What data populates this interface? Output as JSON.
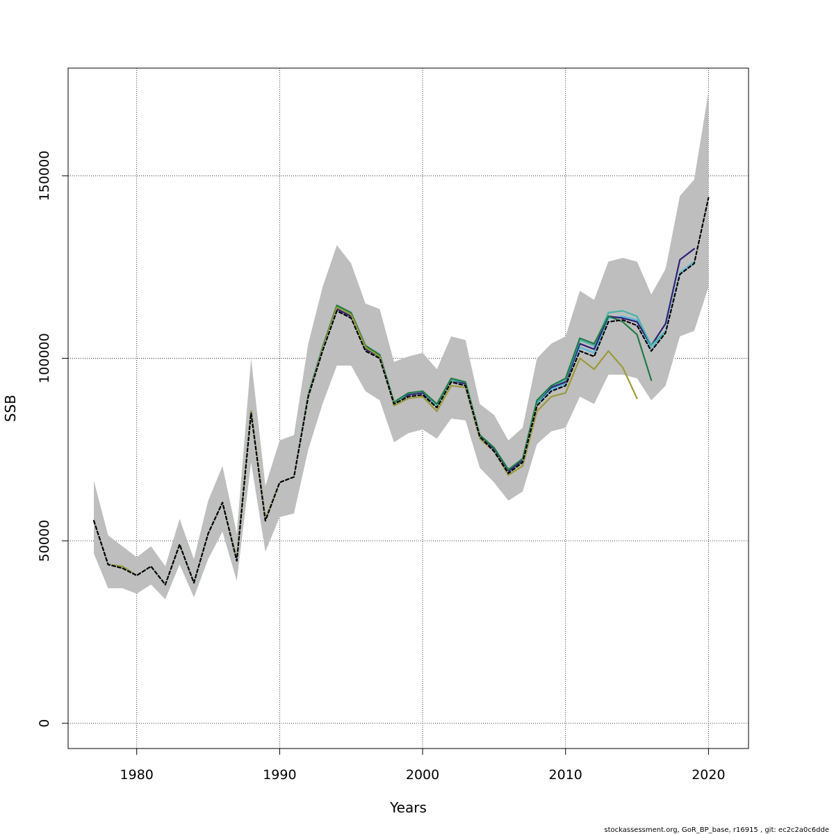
{
  "chart_data": {
    "type": "line",
    "xlabel": "Years",
    "ylabel": "SSB",
    "xlim": [
      1975.2,
      2022.8
    ],
    "ylim": [
      -6900,
      179500
    ],
    "x_ticks": [
      1980,
      1990,
      2000,
      2010,
      2020
    ],
    "y_ticks": [
      0,
      50000,
      100000,
      150000
    ],
    "x_tick_labels": [
      "1980",
      "1990",
      "2000",
      "2010",
      "2020"
    ],
    "y_tick_labels": [
      "0",
      "50000",
      "100000",
      "150000"
    ],
    "grid": true,
    "footer": "stockassessment.org, GoR_BP_base, r16915 , git: ec2c2a0c6dde",
    "band": {
      "color": "#bebebe",
      "x": [
        1977,
        1978,
        1979,
        1980,
        1981,
        1982,
        1983,
        1984,
        1985,
        1986,
        1987,
        1988,
        1989,
        1990,
        1991,
        1992,
        1993,
        1994,
        1995,
        1996,
        1997,
        1998,
        1999,
        2000,
        2001,
        2002,
        2003,
        2004,
        2005,
        2006,
        2007,
        2008,
        2009,
        2010,
        2011,
        2012,
        2013,
        2014,
        2015,
        2016,
        2017,
        2018,
        2019,
        2020
      ],
      "upper": [
        66500,
        51500,
        48500,
        45500,
        48500,
        43000,
        56000,
        45000,
        61000,
        70500,
        52000,
        100000,
        65000,
        77500,
        79000,
        104000,
        119500,
        131000,
        126000,
        115000,
        113500,
        99000,
        100500,
        101500,
        97000,
        106000,
        105000,
        87500,
        84500,
        77500,
        81000,
        100000,
        104000,
        106000,
        118500,
        116000,
        126500,
        127500,
        126500,
        117500,
        124500,
        144500,
        149000,
        173000
      ],
      "lower": [
        46500,
        37000,
        37000,
        35500,
        38000,
        34000,
        43500,
        34500,
        45000,
        52500,
        39000,
        71500,
        47000,
        56500,
        57500,
        75000,
        87500,
        98000,
        98000,
        91000,
        88500,
        77000,
        79500,
        80500,
        78000,
        83500,
        83000,
        70000,
        66000,
        61000,
        63500,
        76500,
        80000,
        81000,
        89500,
        87500,
        95500,
        95500,
        94500,
        88500,
        92500,
        106000,
        107500,
        119500
      ]
    },
    "series": [
      {
        "style": "black-dashed",
        "color": "#000000",
        "x": [
          1977,
          1978,
          1979,
          1980,
          1981,
          1982,
          1983,
          1984,
          1985,
          1986,
          1987,
          1988,
          1989,
          1990,
          1991,
          1992,
          1993,
          1994,
          1995,
          1996,
          1997,
          1998,
          1999,
          2000,
          2001,
          2002,
          2003,
          2004,
          2005,
          2006,
          2007,
          2008,
          2009,
          2010,
          2011,
          2012,
          2013,
          2014,
          2015,
          2016,
          2017,
          2018,
          2019,
          2020
        ],
        "values": [
          55500,
          43500,
          42500,
          40500,
          43000,
          38000,
          49000,
          38500,
          52000,
          60500,
          44500,
          85000,
          55500,
          66000,
          67500,
          89500,
          102000,
          113000,
          111000,
          102000,
          100000,
          87500,
          89500,
          90000,
          86500,
          93500,
          92500,
          78500,
          74500,
          68500,
          71500,
          87000,
          91000,
          92500,
          102000,
          100500,
          110000,
          110500,
          109000,
          102000,
          107000,
          123000,
          126000,
          144000
        ]
      },
      {
        "style": "solid",
        "color": "#5cb8d8",
        "x": [
          1977,
          1978,
          1979,
          1980,
          1981,
          1982,
          1983,
          1984,
          1985,
          1986,
          1987,
          1988,
          1989,
          1990,
          1991,
          1992,
          1993,
          1994,
          1995,
          1996,
          1997,
          1998,
          1999,
          2000,
          2001,
          2002,
          2003,
          2004,
          2005,
          2006,
          2007,
          2008,
          2009,
          2010,
          2011,
          2012,
          2013,
          2014,
          2015,
          2016,
          2017,
          2018,
          2019
        ],
        "values": [
          55500,
          43500,
          42500,
          40500,
          43000,
          38000,
          49000,
          38500,
          52000,
          60500,
          44500,
          85000,
          55500,
          66000,
          67500,
          89500,
          102500,
          113000,
          111000,
          102500,
          100500,
          87500,
          89500,
          90000,
          86500,
          93500,
          92500,
          78500,
          74500,
          69000,
          72000,
          87500,
          91500,
          93000,
          103000,
          101500,
          111000,
          111500,
          110500,
          102500,
          107500,
          123500,
          126500
        ]
      },
      {
        "style": "solid",
        "color": "#2e1f7a",
        "x": [
          1977,
          1978,
          1979,
          1980,
          1981,
          1982,
          1983,
          1984,
          1985,
          1986,
          1987,
          1988,
          1989,
          1990,
          1991,
          1992,
          1993,
          1994,
          1995,
          1996,
          1997,
          1998,
          1999,
          2000,
          2001,
          2002,
          2003,
          2004,
          2005,
          2006,
          2007,
          2008,
          2009,
          2010,
          2011,
          2012,
          2013,
          2014,
          2015,
          2016,
          2017,
          2018,
          2019
        ],
        "values": [
          55500,
          43500,
          42500,
          40500,
          43000,
          38000,
          49000,
          38500,
          52000,
          60500,
          44500,
          85500,
          55500,
          66000,
          67500,
          89500,
          102500,
          113500,
          111500,
          102500,
          100500,
          87500,
          90000,
          90500,
          87000,
          94000,
          93000,
          79000,
          75000,
          69000,
          72000,
          88000,
          92000,
          93500,
          104000,
          102500,
          111500,
          111000,
          110000,
          103500,
          109500,
          127000,
          130000
        ]
      },
      {
        "style": "solid",
        "color": "#45b5a5",
        "x": [
          1977,
          1978,
          1979,
          1980,
          1981,
          1982,
          1983,
          1984,
          1985,
          1986,
          1987,
          1988,
          1989,
          1990,
          1991,
          1992,
          1993,
          1994,
          1995,
          1996,
          1997,
          1998,
          1999,
          2000,
          2001,
          2002,
          2003,
          2004,
          2005,
          2006,
          2007,
          2008,
          2009,
          2010,
          2011,
          2012,
          2013,
          2014,
          2015,
          2016,
          2017
        ],
        "values": [
          55500,
          43500,
          42500,
          40500,
          43000,
          38000,
          49000,
          38500,
          52000,
          60500,
          44500,
          85500,
          55500,
          66000,
          67500,
          90000,
          103000,
          114000,
          112000,
          103000,
          101000,
          87500,
          90500,
          91000,
          87000,
          94000,
          93500,
          79000,
          75500,
          69500,
          72500,
          88000,
          92500,
          94000,
          105000,
          103500,
          112500,
          113000,
          111500,
          103500,
          107500
        ]
      },
      {
        "style": "solid",
        "color": "#1e7a44",
        "x": [
          1977,
          1978,
          1979,
          1980,
          1981,
          1982,
          1983,
          1984,
          1985,
          1986,
          1987,
          1988,
          1989,
          1990,
          1991,
          1992,
          1993,
          1994,
          1995,
          1996,
          1997,
          1998,
          1999,
          2000,
          2001,
          2002,
          2003,
          2004,
          2005,
          2006,
          2007,
          2008,
          2009,
          2010,
          2011,
          2012,
          2013,
          2014,
          2015,
          2016
        ],
        "values": [
          55500,
          43500,
          43000,
          40500,
          43000,
          38000,
          49000,
          38500,
          52000,
          60500,
          45000,
          85500,
          56000,
          66000,
          67500,
          90000,
          103000,
          114500,
          112500,
          103500,
          101000,
          88000,
          90500,
          91000,
          87500,
          94500,
          93500,
          79000,
          75500,
          69500,
          72500,
          88500,
          92500,
          94500,
          105500,
          104000,
          111500,
          110000,
          106500,
          94000
        ]
      },
      {
        "style": "solid",
        "color": "#9a9a36",
        "x": [
          1977,
          1978,
          1979,
          1980,
          1981,
          1982,
          1983,
          1984,
          1985,
          1986,
          1987,
          1988,
          1989,
          1990,
          1991,
          1992,
          1993,
          1994,
          1995,
          1996,
          1997,
          1998,
          1999,
          2000,
          2001,
          2002,
          2003,
          2004,
          2005,
          2006,
          2007,
          2008,
          2009,
          2010,
          2011,
          2012,
          2013,
          2014,
          2015
        ],
        "values": [
          55500,
          43500,
          43000,
          40500,
          43000,
          38000,
          49000,
          38500,
          52000,
          60500,
          45000,
          85500,
          56000,
          66000,
          67500,
          89500,
          102500,
          114000,
          112000,
          103000,
          100500,
          87000,
          89000,
          89500,
          85500,
          92500,
          92000,
          78000,
          74500,
          68000,
          70500,
          85500,
          89500,
          90500,
          100000,
          97000,
          102000,
          97500,
          89000
        ]
      }
    ]
  }
}
